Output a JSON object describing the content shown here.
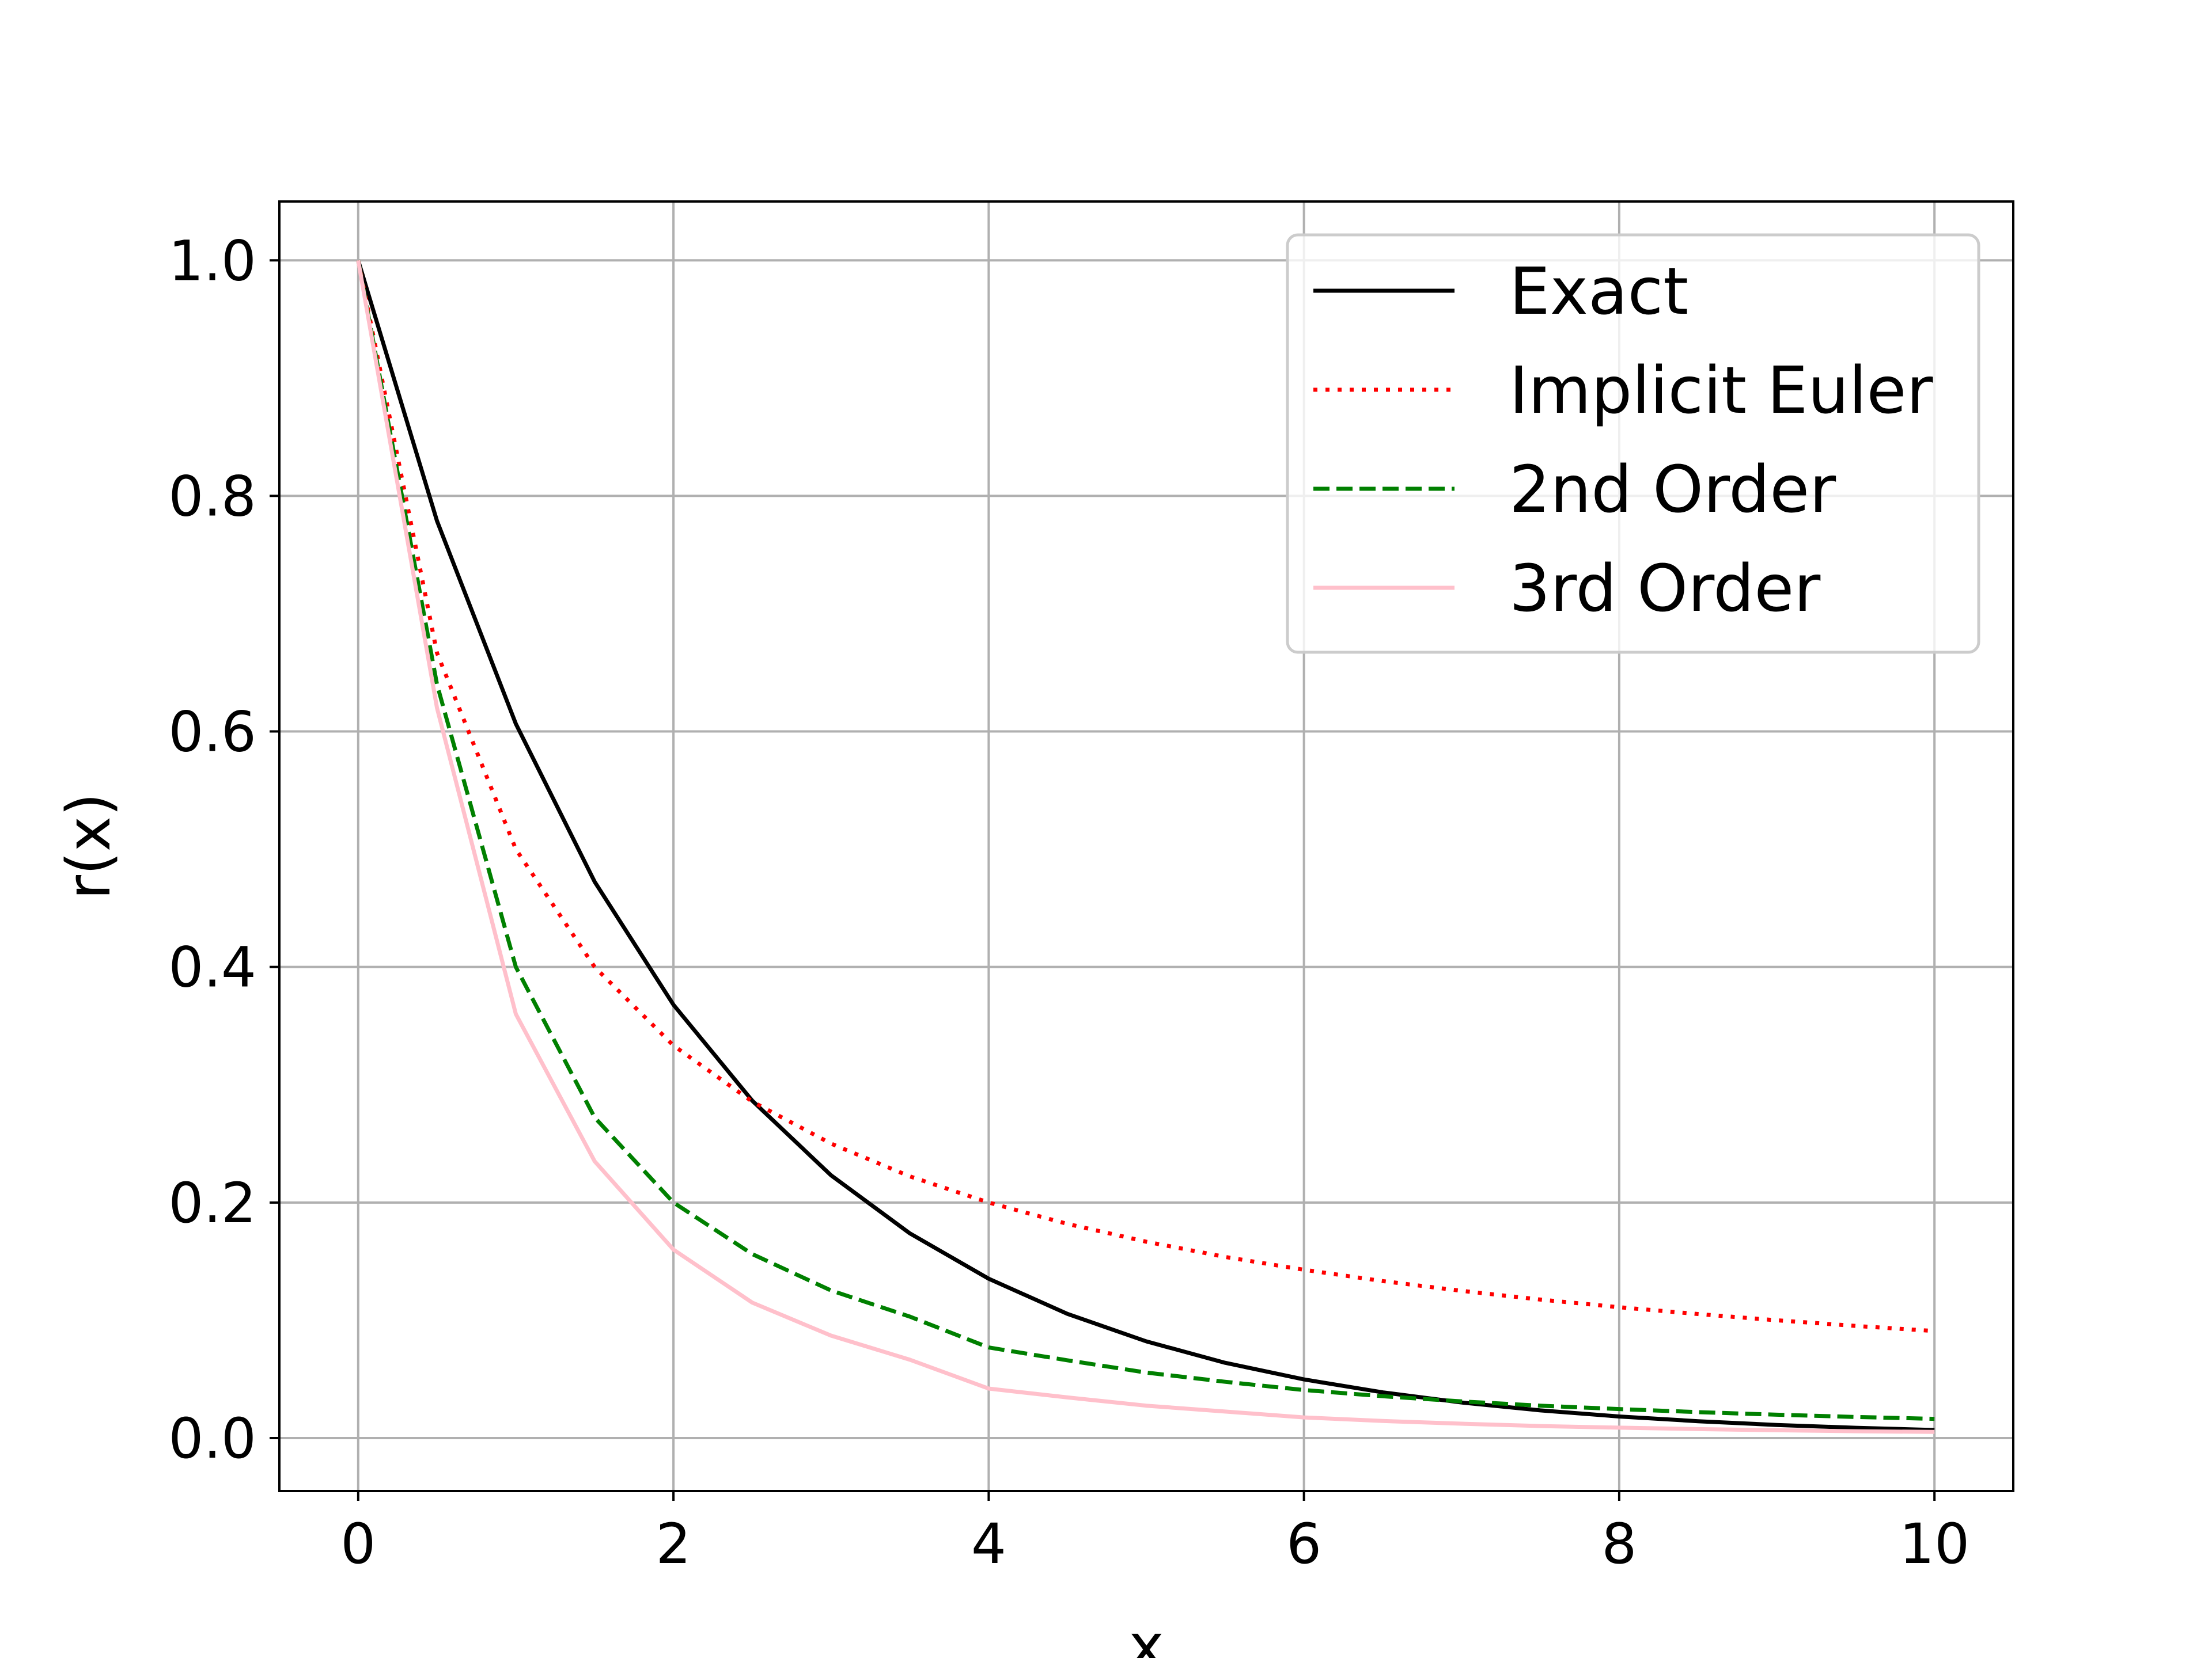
{
  "chart_data": {
    "type": "line",
    "title": "",
    "xlabel": "x",
    "ylabel": "r(x)",
    "xlim": [
      -0.5,
      10.5
    ],
    "ylim": [
      -0.045,
      1.05
    ],
    "grid": true,
    "legend_position": "top-right",
    "xticks": [
      0,
      2,
      4,
      6,
      8,
      10
    ],
    "xtick_labels": [
      "0",
      "2",
      "4",
      "6",
      "8",
      "10"
    ],
    "yticks": [
      0.0,
      0.2,
      0.4,
      0.6,
      0.8,
      1.0
    ],
    "ytick_labels": [
      "0.0",
      "0.2",
      "0.4",
      "0.6",
      "0.8",
      "1.0"
    ],
    "x": [
      0,
      0.5,
      1,
      1.5,
      2,
      2.5,
      3,
      3.5,
      4,
      4.5,
      5,
      5.5,
      6,
      6.5,
      7,
      7.5,
      8,
      8.5,
      9,
      9.5,
      10
    ],
    "series": [
      {
        "name": "Exact",
        "color": "#000000",
        "style": "solid",
        "values": [
          1.0,
          0.7788,
          0.6065,
          0.4724,
          0.3679,
          0.2865,
          0.2231,
          0.1738,
          0.1353,
          0.1054,
          0.0821,
          0.0639,
          0.0498,
          0.0388,
          0.0302,
          0.0235,
          0.0183,
          0.0143,
          0.0111,
          0.0087,
          0.0068
        ]
      },
      {
        "name": "Implicit Euler",
        "color": "#ff0000",
        "style": "dotted",
        "values": [
          1.0,
          0.6667,
          0.5,
          0.4,
          0.3333,
          0.2857,
          0.25,
          0.2222,
          0.2,
          0.1818,
          0.1667,
          0.1538,
          0.1429,
          0.1333,
          0.125,
          0.1176,
          0.1111,
          0.1053,
          0.1,
          0.0952,
          0.0909
        ]
      },
      {
        "name": "2nd Order",
        "color": "#008000",
        "style": "dashed",
        "values": [
          1.0,
          0.64,
          0.4,
          0.2722,
          0.2,
          0.1562,
          0.1253,
          0.1031,
          0.0769,
          0.066,
          0.0556,
          0.0478,
          0.0408,
          0.0355,
          0.0311,
          0.0275,
          0.0246,
          0.022,
          0.0198,
          0.0179,
          0.0163
        ]
      },
      {
        "name": "3rd Order",
        "color": "#ffc0cb",
        "style": "solid",
        "values": [
          1.0,
          0.62,
          0.36,
          0.235,
          0.16,
          0.115,
          0.087,
          0.0665,
          0.042,
          0.0345,
          0.0275,
          0.0225,
          0.0175,
          0.0145,
          0.0122,
          0.0102,
          0.0088,
          0.0076,
          0.0066,
          0.0058,
          0.0052
        ]
      }
    ]
  }
}
